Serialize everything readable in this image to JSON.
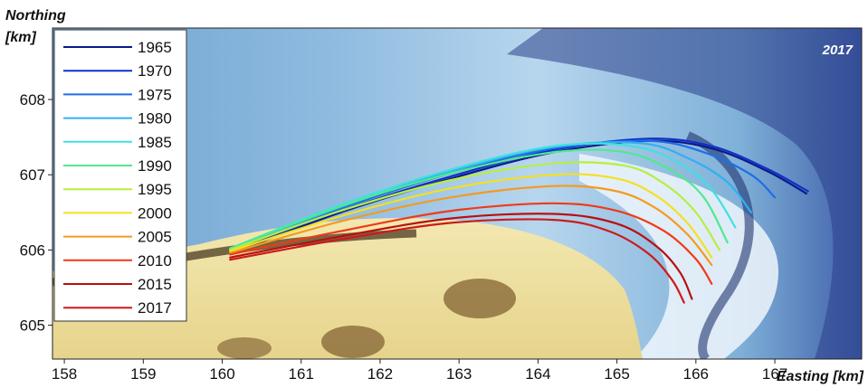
{
  "chart_data": {
    "type": "line",
    "map_year": "2017",
    "xlabel": "Easting [km]",
    "ylabel": "Northing [km]",
    "ylabel_line1": "Northing",
    "ylabel_line2": "[km]",
    "xlim": [
      157.85,
      168.1
    ],
    "ylim": [
      604.55,
      608.95
    ],
    "xticks": [
      158,
      159,
      160,
      161,
      162,
      163,
      164,
      165,
      166,
      167
    ],
    "yticks": [
      605,
      606,
      607,
      608
    ],
    "legend_position": "top-left",
    "series": [
      {
        "name": "1965",
        "color": "#0a1a8a",
        "points": [
          [
            160.1,
            605.95
          ],
          [
            161.5,
            606.5
          ],
          [
            162.9,
            606.95
          ],
          [
            164.2,
            607.3
          ],
          [
            165.4,
            607.45
          ],
          [
            166.2,
            607.35
          ],
          [
            166.9,
            607.05
          ],
          [
            167.4,
            606.75
          ]
        ]
      },
      {
        "name": "1970",
        "color": "#1030c8",
        "points": [
          [
            160.1,
            605.97
          ],
          [
            161.5,
            606.52
          ],
          [
            162.9,
            606.98
          ],
          [
            164.2,
            607.33
          ],
          [
            165.4,
            607.48
          ],
          [
            166.2,
            607.38
          ],
          [
            166.9,
            607.08
          ],
          [
            167.42,
            606.78
          ]
        ]
      },
      {
        "name": "1975",
        "color": "#1c6fe6",
        "points": [
          [
            160.1,
            605.99
          ],
          [
            161.5,
            606.55
          ],
          [
            162.9,
            607.02
          ],
          [
            164.2,
            607.35
          ],
          [
            165.4,
            607.45
          ],
          [
            166.1,
            607.3
          ],
          [
            166.7,
            607.0
          ],
          [
            167.0,
            606.7
          ]
        ]
      },
      {
        "name": "1980",
        "color": "#30b0f0",
        "points": [
          [
            160.1,
            606.0
          ],
          [
            161.5,
            606.57
          ],
          [
            162.9,
            607.05
          ],
          [
            164.2,
            607.37
          ],
          [
            165.3,
            607.42
          ],
          [
            165.9,
            607.22
          ],
          [
            166.4,
            606.9
          ],
          [
            166.7,
            606.5
          ]
        ]
      },
      {
        "name": "1985",
        "color": "#40e0e0",
        "points": [
          [
            160.1,
            606.02
          ],
          [
            161.5,
            606.6
          ],
          [
            162.9,
            607.07
          ],
          [
            164.2,
            607.38
          ],
          [
            165.2,
            607.38
          ],
          [
            165.8,
            607.15
          ],
          [
            166.2,
            606.8
          ],
          [
            166.5,
            606.3
          ]
        ]
      },
      {
        "name": "1990",
        "color": "#50e890",
        "points": [
          [
            160.1,
            606.02
          ],
          [
            161.5,
            606.58
          ],
          [
            162.9,
            607.02
          ],
          [
            164.2,
            607.3
          ],
          [
            165.1,
            607.3
          ],
          [
            165.7,
            607.05
          ],
          [
            166.1,
            606.7
          ],
          [
            166.4,
            606.1
          ]
        ]
      },
      {
        "name": "1995",
        "color": "#b8ee40",
        "points": [
          [
            160.1,
            606.0
          ],
          [
            161.5,
            606.52
          ],
          [
            162.9,
            606.93
          ],
          [
            164.2,
            607.15
          ],
          [
            165.1,
            607.12
          ],
          [
            165.6,
            606.88
          ],
          [
            166.0,
            606.5
          ],
          [
            166.3,
            606.0
          ]
        ]
      },
      {
        "name": "2000",
        "color": "#f4e020",
        "points": [
          [
            160.1,
            605.98
          ],
          [
            161.5,
            606.45
          ],
          [
            162.9,
            606.82
          ],
          [
            164.2,
            607.0
          ],
          [
            165.0,
            606.95
          ],
          [
            165.5,
            606.72
          ],
          [
            165.9,
            606.35
          ],
          [
            166.2,
            605.9
          ]
        ]
      },
      {
        "name": "2005",
        "color": "#f49a20",
        "points": [
          [
            160.1,
            605.96
          ],
          [
            161.5,
            606.38
          ],
          [
            162.9,
            606.7
          ],
          [
            164.2,
            606.85
          ],
          [
            165.0,
            606.78
          ],
          [
            165.5,
            606.55
          ],
          [
            165.9,
            606.2
          ],
          [
            166.2,
            605.8
          ]
        ]
      },
      {
        "name": "2010",
        "color": "#f03a18",
        "points": [
          [
            160.1,
            605.94
          ],
          [
            161.5,
            606.25
          ],
          [
            162.9,
            606.52
          ],
          [
            164.2,
            606.62
          ],
          [
            165.0,
            606.52
          ],
          [
            165.6,
            606.25
          ],
          [
            166.0,
            605.88
          ],
          [
            166.2,
            605.55
          ]
        ]
      },
      {
        "name": "2015",
        "color": "#b81010",
        "points": [
          [
            160.1,
            605.9
          ],
          [
            161.5,
            606.18
          ],
          [
            162.9,
            606.42
          ],
          [
            164.2,
            606.48
          ],
          [
            165.0,
            606.35
          ],
          [
            165.5,
            606.05
          ],
          [
            165.8,
            605.7
          ],
          [
            165.95,
            605.35
          ]
        ]
      },
      {
        "name": "2017",
        "color": "#cc1a1a",
        "points": [
          [
            160.1,
            605.87
          ],
          [
            161.5,
            606.14
          ],
          [
            162.9,
            606.36
          ],
          [
            164.2,
            606.4
          ],
          [
            164.9,
            606.25
          ],
          [
            165.4,
            605.95
          ],
          [
            165.7,
            605.6
          ],
          [
            165.85,
            605.3
          ]
        ]
      }
    ]
  }
}
